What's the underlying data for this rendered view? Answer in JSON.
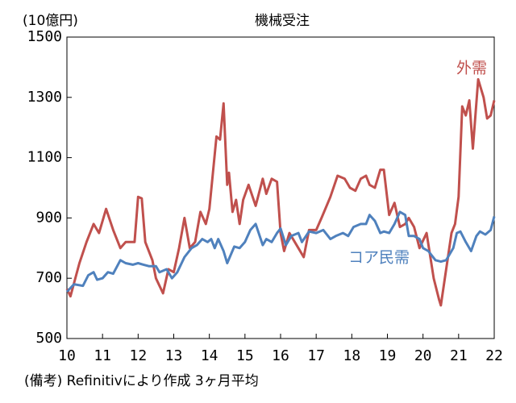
{
  "chart_data": {
    "type": "line",
    "title": "機械受注",
    "y_label": "(10億円)",
    "note": "(備考) Refinitivにより作成 3ヶ月平均",
    "xlim": [
      10,
      22
    ],
    "xticks": [
      10,
      11,
      12,
      13,
      14,
      15,
      16,
      17,
      18,
      19,
      20,
      21,
      22
    ],
    "ylim": [
      500,
      1500
    ],
    "yticks": [
      500,
      700,
      900,
      1100,
      1300,
      1500
    ],
    "series": [
      {
        "name": "外需",
        "color": "#c0504d",
        "x": [
          10.0,
          10.1,
          10.35,
          10.55,
          10.75,
          10.9,
          11.1,
          11.3,
          11.5,
          11.65,
          11.9,
          12.0,
          12.1,
          12.2,
          12.4,
          12.5,
          12.7,
          12.85,
          13.0,
          13.15,
          13.3,
          13.45,
          13.6,
          13.75,
          13.9,
          14.0,
          14.2,
          14.3,
          14.4,
          14.5,
          14.55,
          14.65,
          14.75,
          14.85,
          14.95,
          15.1,
          15.3,
          15.5,
          15.6,
          15.75,
          15.9,
          16.0,
          16.1,
          16.25,
          16.5,
          16.65,
          16.8,
          17.0,
          17.15,
          17.4,
          17.6,
          17.8,
          17.95,
          18.1,
          18.25,
          18.4,
          18.5,
          18.65,
          18.8,
          18.9,
          19.05,
          19.2,
          19.35,
          19.5,
          19.6,
          19.75,
          19.9,
          20.1,
          20.3,
          20.45,
          20.5,
          20.65,
          20.8,
          20.9,
          21.0,
          21.1,
          21.2,
          21.3,
          21.4,
          21.55,
          21.7,
          21.8,
          21.9,
          22.0
        ],
        "values": [
          665,
          640,
          750,
          820,
          880,
          850,
          930,
          860,
          800,
          820,
          820,
          970,
          965,
          820,
          760,
          700,
          650,
          730,
          720,
          800,
          900,
          800,
          820,
          920,
          880,
          930,
          1170,
          1160,
          1280,
          1010,
          1050,
          920,
          960,
          880,
          960,
          1010,
          940,
          1030,
          980,
          1030,
          1020,
          850,
          790,
          850,
          800,
          770,
          860,
          860,
          900,
          970,
          1040,
          1030,
          1000,
          990,
          1030,
          1040,
          1010,
          1000,
          1060,
          1060,
          910,
          950,
          870,
          880,
          900,
          870,
          800,
          850,
          700,
          630,
          610,
          730,
          850,
          880,
          970,
          1270,
          1240,
          1290,
          1130,
          1360,
          1300,
          1230,
          1240,
          1290
        ]
      },
      {
        "name": "コア民需",
        "color": "#4f81bd",
        "x": [
          10.0,
          10.2,
          10.45,
          10.6,
          10.75,
          10.85,
          11.0,
          11.15,
          11.3,
          11.5,
          11.65,
          11.85,
          12.0,
          12.15,
          12.3,
          12.5,
          12.6,
          12.8,
          12.95,
          13.1,
          13.3,
          13.5,
          13.65,
          13.8,
          13.95,
          14.05,
          14.15,
          14.25,
          14.4,
          14.5,
          14.7,
          14.85,
          15.0,
          15.15,
          15.3,
          15.5,
          15.6,
          15.75,
          15.9,
          16.0,
          16.15,
          16.3,
          16.5,
          16.6,
          16.8,
          17.0,
          17.2,
          17.4,
          17.55,
          17.75,
          17.9,
          18.05,
          18.25,
          18.4,
          18.5,
          18.65,
          18.8,
          18.9,
          19.05,
          19.2,
          19.35,
          19.5,
          19.6,
          19.75,
          19.9,
          20.0,
          20.15,
          20.35,
          20.5,
          20.65,
          20.85,
          20.95,
          21.05,
          21.2,
          21.35,
          21.5,
          21.6,
          21.75,
          21.9,
          22.0
        ],
        "values": [
          655,
          680,
          675,
          710,
          720,
          695,
          700,
          720,
          715,
          760,
          750,
          745,
          750,
          745,
          740,
          740,
          720,
          730,
          700,
          720,
          770,
          800,
          810,
          830,
          820,
          830,
          800,
          830,
          790,
          750,
          805,
          800,
          820,
          860,
          880,
          810,
          830,
          820,
          850,
          865,
          810,
          840,
          850,
          820,
          855,
          850,
          860,
          830,
          840,
          850,
          840,
          870,
          880,
          880,
          910,
          890,
          850,
          855,
          850,
          880,
          920,
          910,
          840,
          840,
          830,
          800,
          790,
          760,
          755,
          760,
          800,
          850,
          855,
          820,
          790,
          840,
          855,
          845,
          860,
          905
        ]
      }
    ]
  }
}
